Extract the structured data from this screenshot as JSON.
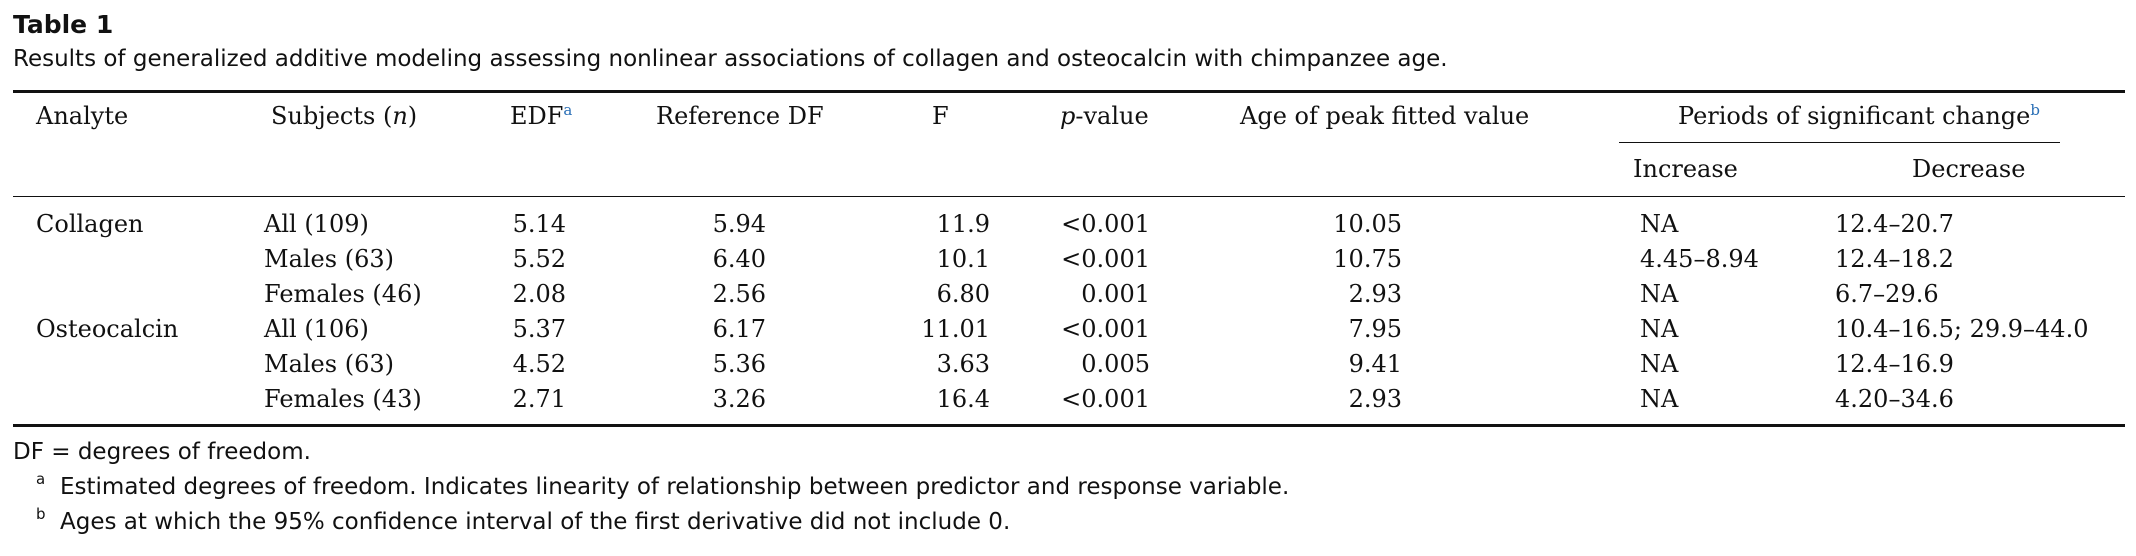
{
  "table_label": "Table 1",
  "caption": "Results of generalized additive modeling assessing nonlinear associations of collagen and osteocalcin with chimpanzee age.",
  "headers": {
    "analyte": "Analyte",
    "subjects_text": "Subjects (",
    "subjects_italic": "n",
    "subjects_close": ")",
    "edf": "EDF",
    "edf_note": "a",
    "ref_df": "Reference DF",
    "f": "F",
    "p_italic": "p",
    "p_rest": "-value",
    "age_peak": "Age of peak fitted value",
    "periods": "Periods of significant change",
    "periods_note": "b",
    "increase": "Increase",
    "decrease": "Decrease"
  },
  "rows": [
    {
      "analyte": "Collagen",
      "subjects": "All (109)",
      "edf": "5.14",
      "ref_df": "5.94",
      "f": "11.9",
      "p": "<0.001",
      "age_peak": "10.05",
      "increase": "NA",
      "decrease": "12.4–20.7"
    },
    {
      "analyte": "",
      "subjects": "Males (63)",
      "edf": "5.52",
      "ref_df": "6.40",
      "f": "10.1",
      "p": "<0.001",
      "age_peak": "10.75",
      "increase": "4.45–8.94",
      "decrease": "12.4–18.2"
    },
    {
      "analyte": "",
      "subjects": "Females (46)",
      "edf": "2.08",
      "ref_df": "2.56",
      "f": "6.80",
      "p": "0.001",
      "age_peak": "2.93",
      "increase": "NA",
      "decrease": "6.7–29.6"
    },
    {
      "analyte": "Osteocalcin",
      "subjects": "All (106)",
      "edf": "5.37",
      "ref_df": "6.17",
      "f": "11.01",
      "p": "<0.001",
      "age_peak": "7.95",
      "increase": "NA",
      "decrease": "10.4–16.5; 29.9–44.0"
    },
    {
      "analyte": "",
      "subjects": "Males (63)",
      "edf": "4.52",
      "ref_df": "5.36",
      "f": "3.63",
      "p": "0.005",
      "age_peak": "9.41",
      "increase": "NA",
      "decrease": "12.4–16.9"
    },
    {
      "analyte": "",
      "subjects": "Females (43)",
      "edf": "2.71",
      "ref_df": "3.26",
      "f": "16.4",
      "p": "<0.001",
      "age_peak": "2.93",
      "increase": "NA",
      "decrease": "4.20–34.6"
    }
  ],
  "footnotes": {
    "df_def": "DF = degrees of freedom.",
    "a_mark": "a",
    "a_text": "Estimated degrees of freedom. Indicates linearity of relationship between predictor and response variable.",
    "b_mark": "b",
    "b_text": "Ages at which the 95% confidence interval of the first derivative did not include 0."
  },
  "colors": {
    "text": "#111111",
    "footnote_link": "#2a6fb6"
  }
}
